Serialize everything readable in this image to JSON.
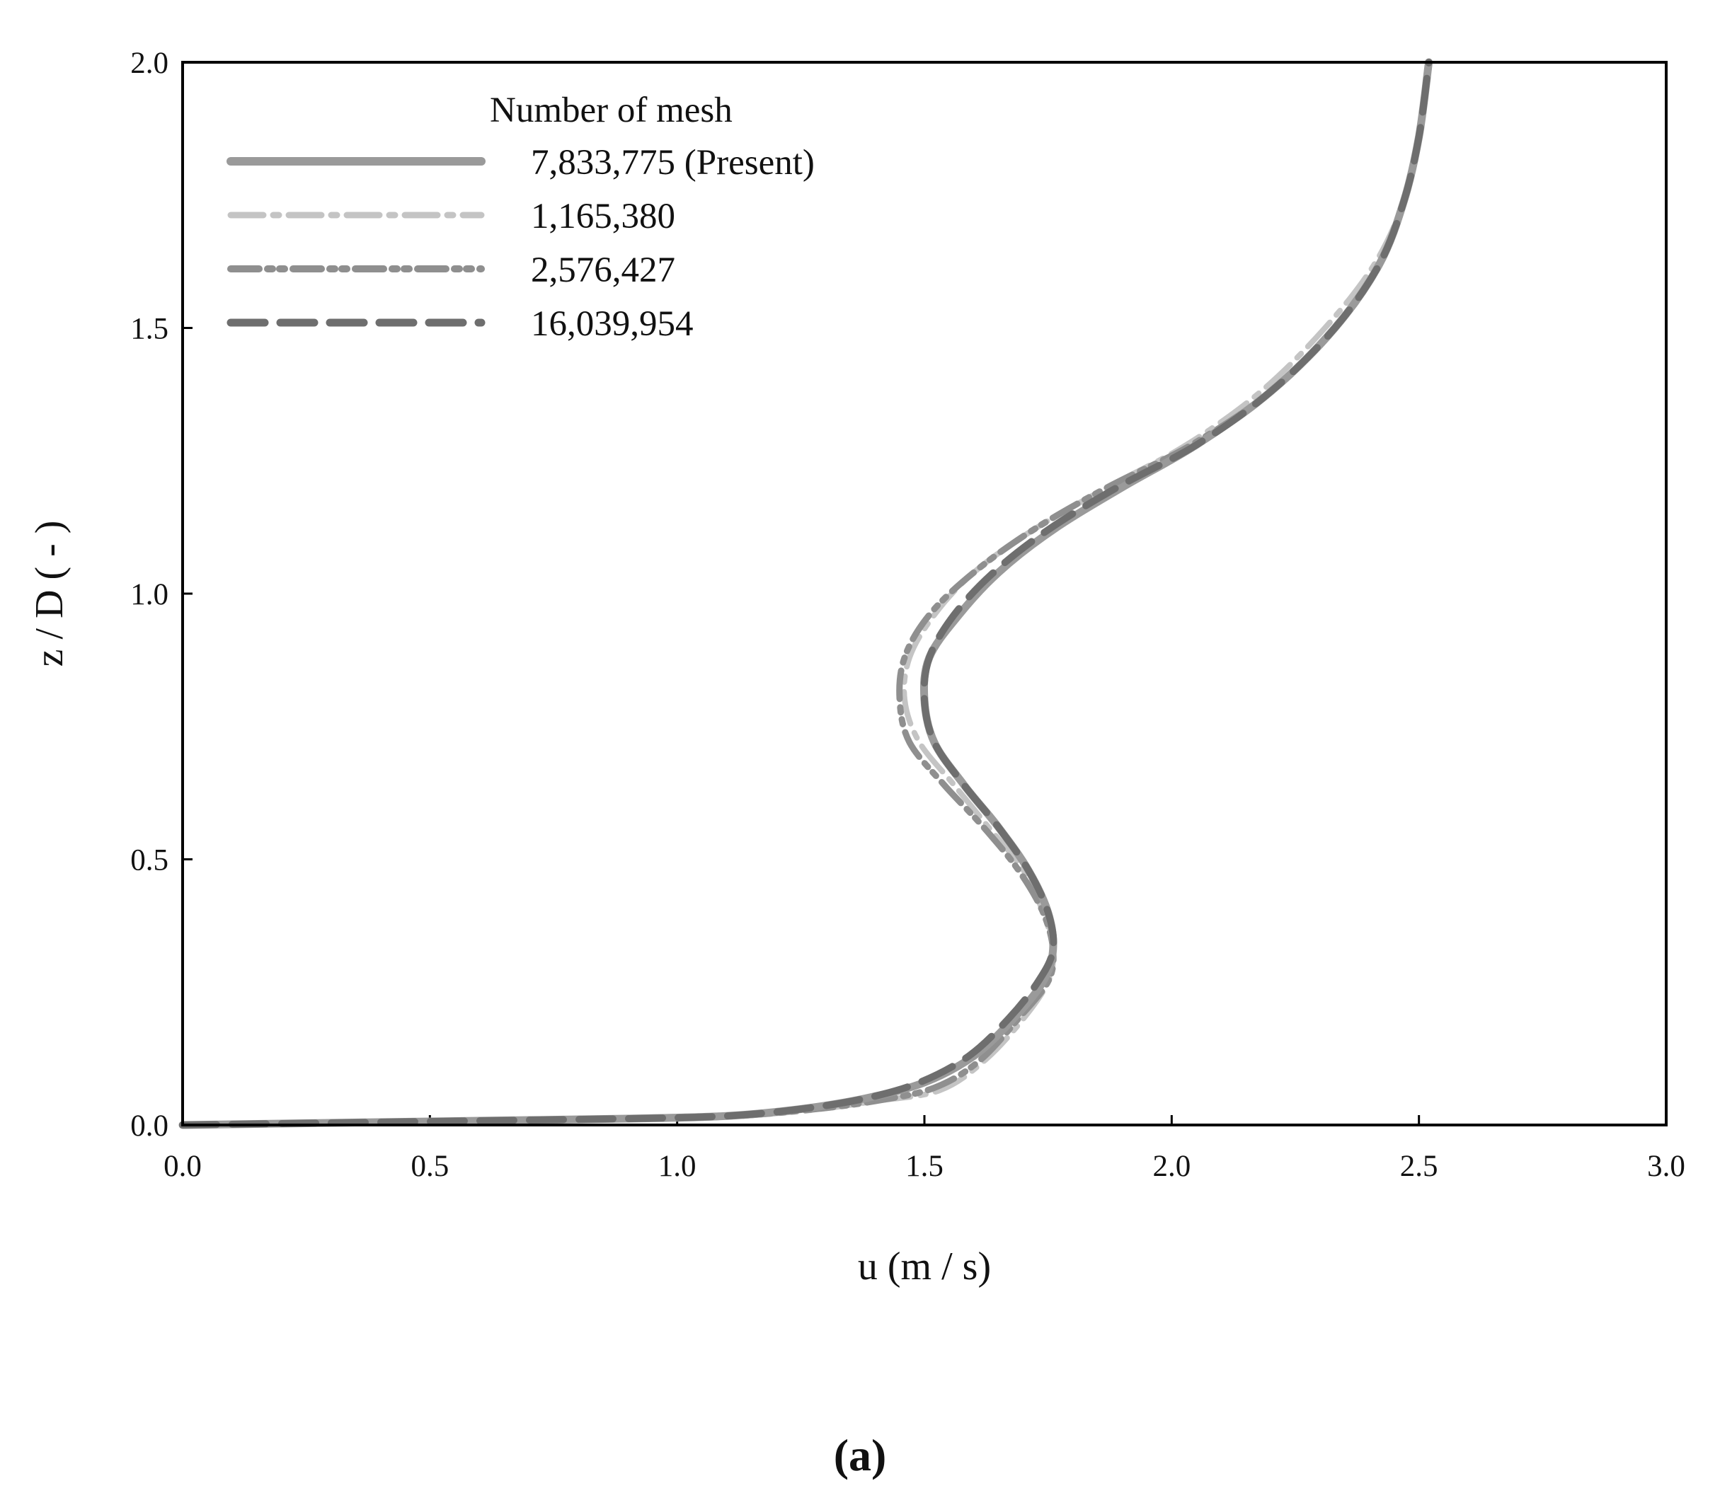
{
  "chart_data": {
    "type": "line",
    "xlabel": "u (m / s)",
    "ylabel": "z / D ( - )",
    "xlim": [
      0.0,
      3.0
    ],
    "ylim": [
      0.0,
      2.0
    ],
    "xticks": [
      "0.0",
      "0.5",
      "1.0",
      "1.5",
      "2.0",
      "2.5",
      "3.0"
    ],
    "yticks": [
      "0.0",
      "0.5",
      "1.0",
      "1.5",
      "2.0"
    ],
    "xtick_values": [
      0.0,
      0.5,
      1.0,
      1.5,
      2.0,
      2.5,
      3.0
    ],
    "ytick_values": [
      0.0,
      0.5,
      1.0,
      1.5,
      2.0
    ],
    "grid": false,
    "legend_title": "Number of mesh",
    "legend_position": "top-left",
    "caption": "(a)",
    "series": [
      {
        "name": "7,833,775 (Present)",
        "style": "solid",
        "color": "#9a9a9a",
        "points": [
          [
            0.0,
            0.0
          ],
          [
            0.3,
            0.004
          ],
          [
            0.6,
            0.008
          ],
          [
            0.9,
            0.012
          ],
          [
            1.1,
            0.017
          ],
          [
            1.25,
            0.03
          ],
          [
            1.38,
            0.05
          ],
          [
            1.5,
            0.08
          ],
          [
            1.6,
            0.13
          ],
          [
            1.68,
            0.2
          ],
          [
            1.74,
            0.27
          ],
          [
            1.76,
            0.33
          ],
          [
            1.75,
            0.4
          ],
          [
            1.71,
            0.48
          ],
          [
            1.65,
            0.56
          ],
          [
            1.58,
            0.64
          ],
          [
            1.52,
            0.72
          ],
          [
            1.5,
            0.8
          ],
          [
            1.51,
            0.88
          ],
          [
            1.57,
            0.96
          ],
          [
            1.65,
            1.04
          ],
          [
            1.76,
            1.12
          ],
          [
            1.9,
            1.2
          ],
          [
            2.05,
            1.28
          ],
          [
            2.2,
            1.38
          ],
          [
            2.33,
            1.5
          ],
          [
            2.42,
            1.62
          ],
          [
            2.47,
            1.74
          ],
          [
            2.5,
            1.86
          ],
          [
            2.52,
            2.0
          ]
        ]
      },
      {
        "name": "1,165,380",
        "style": "dashdot",
        "color": "#c4c4c4",
        "points": [
          [
            0.0,
            0.0
          ],
          [
            0.3,
            0.004
          ],
          [
            0.6,
            0.008
          ],
          [
            0.9,
            0.012
          ],
          [
            1.1,
            0.016
          ],
          [
            1.27,
            0.028
          ],
          [
            1.4,
            0.045
          ],
          [
            1.53,
            0.065
          ],
          [
            1.62,
            0.12
          ],
          [
            1.7,
            0.2
          ],
          [
            1.75,
            0.27
          ],
          [
            1.76,
            0.33
          ],
          [
            1.74,
            0.4
          ],
          [
            1.7,
            0.48
          ],
          [
            1.63,
            0.56
          ],
          [
            1.56,
            0.64
          ],
          [
            1.49,
            0.72
          ],
          [
            1.46,
            0.8
          ],
          [
            1.47,
            0.88
          ],
          [
            1.52,
            0.96
          ],
          [
            1.6,
            1.04
          ],
          [
            1.72,
            1.12
          ],
          [
            1.87,
            1.2
          ],
          [
            2.03,
            1.28
          ],
          [
            2.18,
            1.38
          ],
          [
            2.31,
            1.5
          ],
          [
            2.41,
            1.62
          ],
          [
            2.47,
            1.74
          ],
          [
            2.5,
            1.86
          ],
          [
            2.52,
            2.0
          ]
        ]
      },
      {
        "name": "2,576,427",
        "style": "dashdotdot",
        "color": "#8f8f8f",
        "points": [
          [
            0.0,
            0.0
          ],
          [
            0.3,
            0.004
          ],
          [
            0.6,
            0.008
          ],
          [
            0.9,
            0.012
          ],
          [
            1.1,
            0.016
          ],
          [
            1.26,
            0.028
          ],
          [
            1.4,
            0.045
          ],
          [
            1.52,
            0.07
          ],
          [
            1.61,
            0.12
          ],
          [
            1.69,
            0.2
          ],
          [
            1.75,
            0.27
          ],
          [
            1.76,
            0.33
          ],
          [
            1.74,
            0.4
          ],
          [
            1.69,
            0.48
          ],
          [
            1.62,
            0.56
          ],
          [
            1.54,
            0.64
          ],
          [
            1.47,
            0.72
          ],
          [
            1.45,
            0.8
          ],
          [
            1.46,
            0.88
          ],
          [
            1.51,
            0.96
          ],
          [
            1.6,
            1.04
          ],
          [
            1.72,
            1.12
          ],
          [
            1.87,
            1.2
          ],
          [
            2.04,
            1.28
          ],
          [
            2.2,
            1.38
          ],
          [
            2.33,
            1.5
          ],
          [
            2.42,
            1.62
          ],
          [
            2.47,
            1.74
          ],
          [
            2.5,
            1.86
          ],
          [
            2.52,
            2.0
          ]
        ]
      },
      {
        "name": "16,039,954",
        "style": "dashed",
        "color": "#6e6e6e",
        "points": [
          [
            0.0,
            0.0
          ],
          [
            0.3,
            0.004
          ],
          [
            0.6,
            0.008
          ],
          [
            0.9,
            0.012
          ],
          [
            1.1,
            0.017
          ],
          [
            1.25,
            0.03
          ],
          [
            1.38,
            0.05
          ],
          [
            1.49,
            0.08
          ],
          [
            1.59,
            0.13
          ],
          [
            1.67,
            0.2
          ],
          [
            1.73,
            0.27
          ],
          [
            1.76,
            0.33
          ],
          [
            1.75,
            0.4
          ],
          [
            1.71,
            0.48
          ],
          [
            1.65,
            0.56
          ],
          [
            1.58,
            0.64
          ],
          [
            1.52,
            0.72
          ],
          [
            1.5,
            0.8
          ],
          [
            1.51,
            0.88
          ],
          [
            1.56,
            0.96
          ],
          [
            1.64,
            1.04
          ],
          [
            1.75,
            1.12
          ],
          [
            1.89,
            1.2
          ],
          [
            2.05,
            1.28
          ],
          [
            2.2,
            1.38
          ],
          [
            2.33,
            1.5
          ],
          [
            2.42,
            1.62
          ],
          [
            2.47,
            1.74
          ],
          [
            2.5,
            1.86
          ],
          [
            2.52,
            2.0
          ]
        ]
      }
    ]
  }
}
